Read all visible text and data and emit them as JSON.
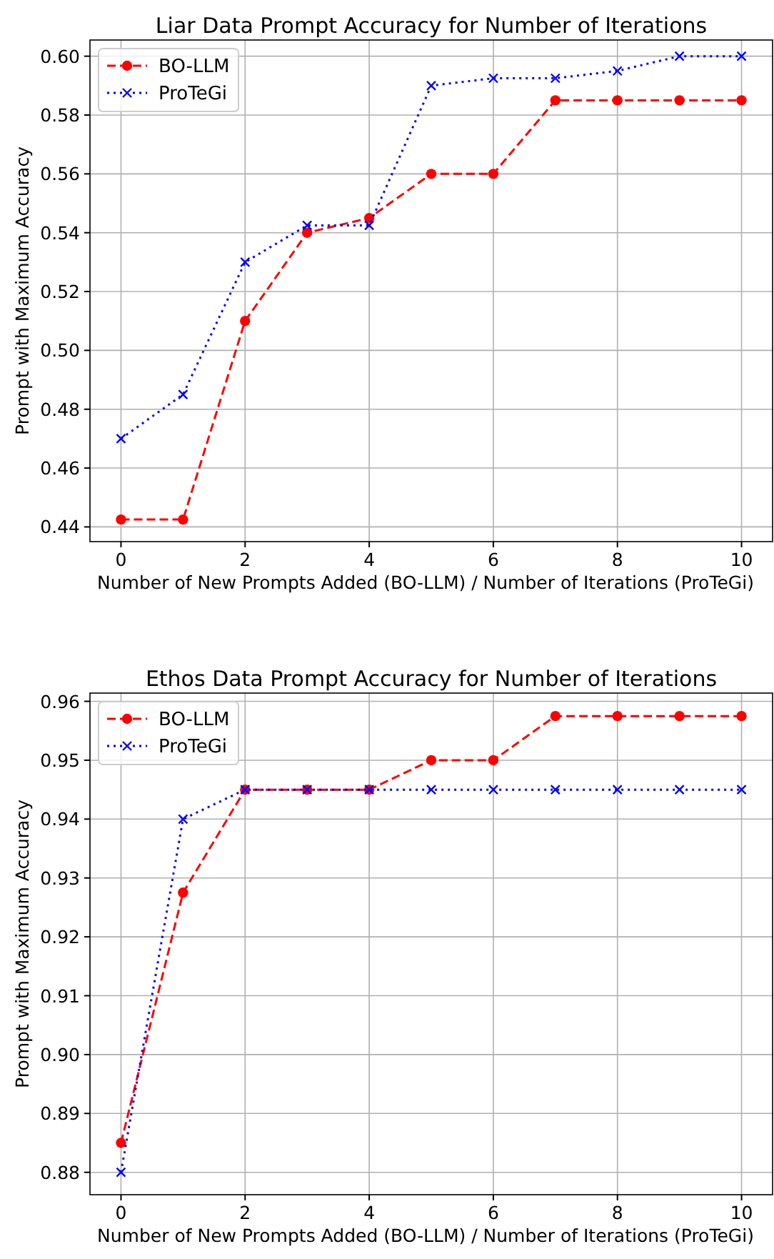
{
  "chart_data": [
    {
      "type": "line",
      "title": "Liar Data Prompt Accuracy for Number of Iterations",
      "xlabel": "Number of New Prompts Added (BO-LLM) / Number of Iterations (ProTeGi)",
      "ylabel": "Prompt with Maximum Accuracy",
      "x": [
        0,
        1,
        2,
        3,
        4,
        5,
        6,
        7,
        8,
        9,
        10
      ],
      "xlim": [
        -0.5,
        10.5
      ],
      "xticks": [
        0,
        2,
        4,
        6,
        8,
        10
      ],
      "ylim": [
        0.435,
        0.6055
      ],
      "yticks": [
        {
          "value": 0.44,
          "label": "0.44"
        },
        {
          "value": 0.46,
          "label": "0.46"
        },
        {
          "value": 0.48,
          "label": "0.48"
        },
        {
          "value": 0.5,
          "label": "0.50"
        },
        {
          "value": 0.52,
          "label": "0.52"
        },
        {
          "value": 0.54,
          "label": "0.54"
        },
        {
          "value": 0.56,
          "label": "0.56"
        },
        {
          "value": 0.58,
          "label": "0.58"
        },
        {
          "value": 0.6,
          "label": "0.60"
        }
      ],
      "grid": true,
      "legend": "top left",
      "series": [
        {
          "name": "BO-LLM",
          "color": "#ff0000",
          "marker": "circle",
          "line_style": "dashed",
          "values": [
            0.4425,
            0.4425,
            0.51,
            0.54,
            0.545,
            0.56,
            0.56,
            0.585,
            0.585,
            0.585,
            0.585
          ]
        },
        {
          "name": "ProTeGi",
          "color": "#0000ff",
          "marker": "cross",
          "line_style": "dotted",
          "values": [
            0.47,
            0.485,
            0.53,
            0.5425,
            0.5425,
            0.59,
            0.5925,
            0.5925,
            0.595,
            0.6,
            0.6
          ]
        }
      ]
    },
    {
      "type": "line",
      "title": "Ethos Data Prompt Accuracy for Number of Iterations",
      "xlabel": "Number of New Prompts Added (BO-LLM) / Number of Iterations (ProTeGi)",
      "ylabel": "Prompt with Maximum Accuracy",
      "x": [
        0,
        1,
        2,
        3,
        4,
        5,
        6,
        7,
        8,
        9,
        10
      ],
      "xlim": [
        -0.5,
        10.5
      ],
      "xticks": [
        0,
        2,
        4,
        6,
        8,
        10
      ],
      "ylim": [
        0.8762,
        0.9614
      ],
      "yticks": [
        {
          "value": 0.88,
          "label": "0.88"
        },
        {
          "value": 0.89,
          "label": "0.89"
        },
        {
          "value": 0.9,
          "label": "0.90"
        },
        {
          "value": 0.91,
          "label": "0.91"
        },
        {
          "value": 0.92,
          "label": "0.92"
        },
        {
          "value": 0.93,
          "label": "0.93"
        },
        {
          "value": 0.94,
          "label": "0.94"
        },
        {
          "value": 0.95,
          "label": "0.95"
        },
        {
          "value": 0.96,
          "label": "0.96"
        }
      ],
      "grid": true,
      "legend": "top left",
      "series": [
        {
          "name": "BO-LLM",
          "color": "#ff0000",
          "marker": "circle",
          "line_style": "dashed",
          "values": [
            0.885,
            0.9275,
            0.945,
            0.945,
            0.945,
            0.95,
            0.95,
            0.9575,
            0.9575,
            0.9575,
            0.9575
          ]
        },
        {
          "name": "ProTeGi",
          "color": "#0000ff",
          "marker": "cross",
          "line_style": "dotted",
          "values": [
            0.88,
            0.94,
            0.945,
            0.945,
            0.945,
            0.945,
            0.945,
            0.945,
            0.945,
            0.945,
            0.945
          ]
        }
      ]
    }
  ]
}
